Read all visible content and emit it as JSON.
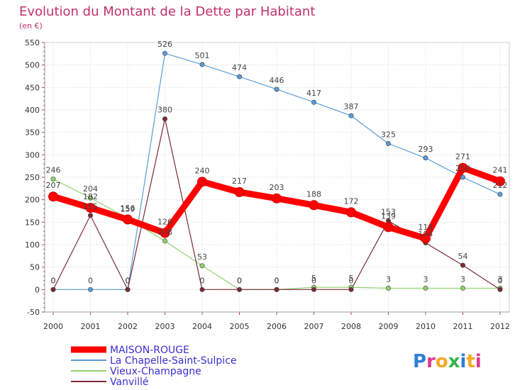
{
  "chart_data": {
    "type": "line",
    "title": "Evolution du Montant de la Dette par Habitant",
    "subtitle": "(en €)",
    "xlabel": "",
    "ylabel": "",
    "ylim": [
      -50,
      550
    ],
    "yticks": [
      -50,
      0,
      50,
      100,
      150,
      200,
      250,
      300,
      350,
      400,
      450,
      500,
      550
    ],
    "categories": [
      "2000",
      "2001",
      "2002",
      "2003",
      "2004",
      "2005",
      "2006",
      "2007",
      "2008",
      "2009",
      "2010",
      "2011",
      "2012"
    ],
    "grid": true,
    "legend_position": "bottom-left",
    "series": [
      {
        "name": "MAISON-ROUGE",
        "color": "#ff0000",
        "values": [
          207,
          182,
          156,
          126,
          240,
          217,
          203,
          188,
          172,
          139,
          114,
          271,
          241
        ],
        "labels": [
          "207",
          "182",
          "156",
          "126",
          "240",
          "217",
          "203",
          "188",
          "172",
          "139",
          "114",
          "271",
          "241"
        ]
      },
      {
        "name": "La Chapelle-Saint-Sulpice",
        "color": "#5b9bd5",
        "values": [
          0,
          0,
          0,
          526,
          501,
          474,
          446,
          417,
          387,
          325,
          293,
          250,
          212
        ],
        "labels": [
          "0",
          "0",
          "0",
          "526",
          "501",
          "474",
          "446",
          "417",
          "387",
          "325",
          "293",
          "250",
          "212"
        ]
      },
      {
        "name": "Vieux-Champagne",
        "color": "#8fd16b",
        "values": [
          246,
          204,
          159,
          108,
          53,
          0,
          0,
          5,
          5,
          3,
          3,
          3,
          3
        ],
        "labels": [
          "246",
          "204",
          "159",
          "108",
          "53",
          "0",
          "0",
          "5",
          "5",
          "3",
          "3",
          "3",
          "3"
        ]
      },
      {
        "name": "Vanvillé",
        "color": "#7a2b35",
        "values": [
          0,
          165,
          0,
          380,
          0,
          0,
          0,
          0,
          0,
          153,
          104,
          54,
          0
        ],
        "labels": [
          "0",
          "165",
          "0",
          "380",
          "0",
          "0",
          "0",
          "0",
          "0",
          "153",
          "104",
          "54",
          "0"
        ]
      }
    ]
  },
  "brand": {
    "logo_text": "Proxiti",
    "letter_colors": [
      "#2e7fd6",
      "#e03a8c",
      "#f7a928",
      "#36b24a",
      "#2e7fd6",
      "#f7a928",
      "#e03a8c"
    ]
  }
}
